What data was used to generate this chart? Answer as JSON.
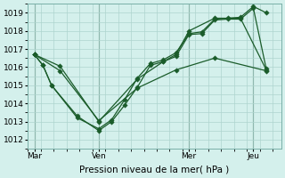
{
  "xlabel": "Pression niveau de la mer( hPa )",
  "bg_color": "#d4f0ec",
  "grid_color": "#aed4ce",
  "line_color": "#1a5c2a",
  "ylim": [
    1011.5,
    1019.5
  ],
  "yticks": [
    1012,
    1013,
    1014,
    1015,
    1016,
    1017,
    1018,
    1019
  ],
  "xtick_labels": [
    "Mar",
    "Ven",
    "Mer",
    "Jeu"
  ],
  "xtick_positions": [
    0,
    30,
    72,
    102
  ],
  "xlim": [
    -3,
    115
  ],
  "series1_x": [
    0,
    4,
    8,
    20,
    30,
    36,
    42,
    48,
    54,
    60,
    66,
    72,
    78,
    84,
    90,
    96,
    102,
    108
  ],
  "series1_y": [
    1016.7,
    1016.1,
    1015.0,
    1013.3,
    1012.5,
    1013.0,
    1013.9,
    1014.9,
    1016.1,
    1016.3,
    1016.6,
    1017.8,
    1017.85,
    1018.6,
    1018.65,
    1018.65,
    1019.25,
    1015.9
  ],
  "series2_x": [
    0,
    4,
    8,
    20,
    30,
    36,
    42,
    48,
    54,
    60,
    66,
    72,
    78,
    84,
    90,
    96,
    102,
    108
  ],
  "series2_y": [
    1016.7,
    1016.1,
    1015.0,
    1013.2,
    1012.6,
    1013.1,
    1014.2,
    1015.4,
    1016.2,
    1016.4,
    1016.8,
    1017.85,
    1017.95,
    1018.65,
    1018.7,
    1018.75,
    1019.35,
    1019.0
  ],
  "series3_x": [
    0,
    12,
    30,
    48,
    60,
    66,
    72,
    84,
    96,
    108
  ],
  "series3_y": [
    1016.7,
    1016.05,
    1013.0,
    1015.35,
    1016.3,
    1016.7,
    1018.0,
    1018.7,
    1018.7,
    1015.85
  ],
  "series4_x": [
    0,
    12,
    30,
    48,
    66,
    84,
    108
  ],
  "series4_y": [
    1016.7,
    1015.8,
    1013.05,
    1014.85,
    1015.85,
    1016.5,
    1015.8
  ]
}
